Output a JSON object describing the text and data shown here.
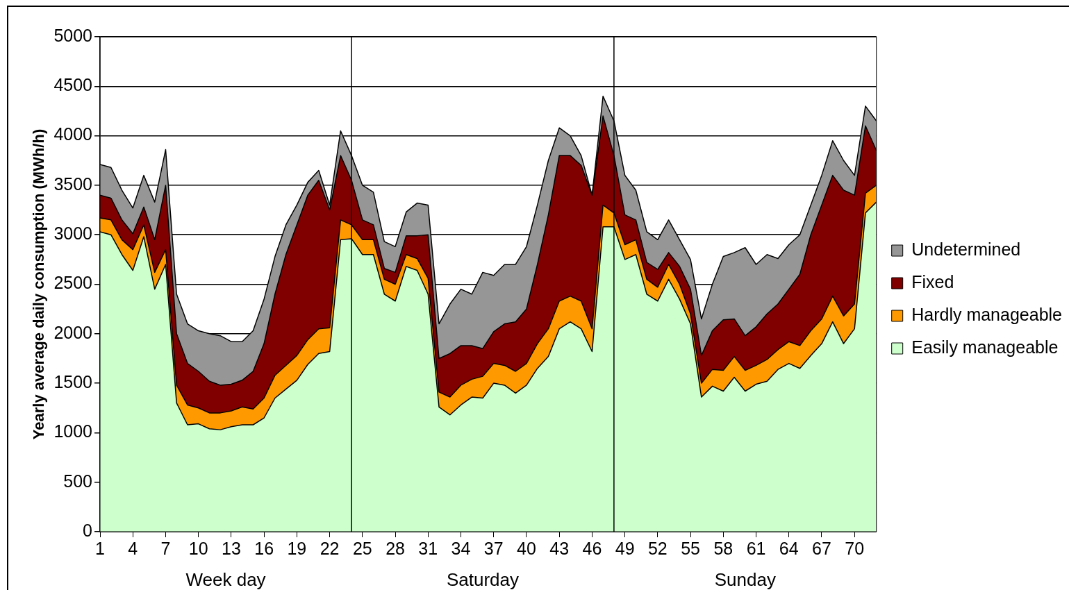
{
  "chart_data": {
    "type": "area",
    "stacked": true,
    "ylabel": "Yearly average daily consumption (MWh/h)",
    "x": [
      1,
      2,
      3,
      4,
      5,
      6,
      7,
      8,
      9,
      10,
      11,
      12,
      13,
      14,
      15,
      16,
      17,
      18,
      19,
      20,
      21,
      22,
      23,
      24,
      25,
      26,
      27,
      28,
      29,
      30,
      31,
      32,
      33,
      34,
      35,
      36,
      37,
      38,
      39,
      40,
      41,
      42,
      43,
      44,
      45,
      46,
      47,
      48,
      49,
      50,
      51,
      52,
      53,
      54,
      55,
      56,
      57,
      58,
      59,
      60,
      61,
      62,
      63,
      64,
      65,
      66,
      67,
      68,
      69,
      70,
      71,
      72
    ],
    "xlim": [
      1,
      72
    ],
    "xticks": [
      1,
      4,
      7,
      10,
      13,
      16,
      19,
      22,
      25,
      28,
      31,
      34,
      37,
      40,
      43,
      46,
      49,
      52,
      55,
      58,
      61,
      64,
      67,
      70
    ],
    "ylim": [
      0,
      5000
    ],
    "yticks": [
      0,
      500,
      1000,
      1500,
      2000,
      2500,
      3000,
      3500,
      4000,
      4500,
      5000
    ],
    "grid": "y",
    "legend": "right",
    "ref_lines": [
      {
        "axis": "x",
        "value": 24,
        "color": "#000000"
      },
      {
        "axis": "x",
        "value": 48,
        "color": "#000000"
      }
    ],
    "annotations": [
      "Week day",
      "Saturday",
      "Sunday"
    ],
    "series": [
      {
        "name": "Easily manageable",
        "color": "#ccffcc",
        "values": [
          3030,
          3000,
          2800,
          2640,
          2980,
          2450,
          2700,
          1300,
          1080,
          1090,
          1040,
          1030,
          1060,
          1080,
          1080,
          1150,
          1350,
          1440,
          1530,
          1690,
          1800,
          1820,
          2950,
          2960,
          2800,
          2800,
          2400,
          2330,
          2680,
          2640,
          2400,
          1260,
          1180,
          1280,
          1360,
          1350,
          1500,
          1480,
          1400,
          1480,
          1650,
          1770,
          2050,
          2120,
          2050,
          1820,
          3080,
          3080,
          2750,
          2800,
          2400,
          2330,
          2550,
          2350,
          2100,
          1360,
          1470,
          1420,
          1560,
          1420,
          1490,
          1520,
          1640,
          1700,
          1650,
          1780,
          1900,
          2120,
          1900,
          2050,
          3220,
          3330
        ]
      },
      {
        "name": "Hardly manageable",
        "color": "#ff9900",
        "values": [
          140,
          150,
          150,
          210,
          120,
          170,
          150,
          180,
          200,
          160,
          160,
          170,
          160,
          180,
          160,
          200,
          230,
          240,
          250,
          250,
          250,
          240,
          200,
          140,
          150,
          150,
          150,
          170,
          120,
          120,
          160,
          150,
          180,
          200,
          180,
          220,
          200,
          200,
          220,
          220,
          250,
          280,
          280,
          260,
          280,
          230,
          220,
          140,
          150,
          150,
          150,
          140,
          150,
          150,
          100,
          140,
          170,
          210,
          210,
          210,
          190,
          220,
          200,
          220,
          230,
          250,
          250,
          260,
          280,
          250,
          200,
          170
        ]
      },
      {
        "name": "Fixed",
        "color": "#800000",
        "values": [
          230,
          220,
          200,
          160,
          180,
          330,
          650,
          520,
          420,
          370,
          320,
          280,
          270,
          270,
          380,
          550,
          820,
          1120,
          1320,
          1460,
          1500,
          1190,
          650,
          450,
          200,
          150,
          110,
          120,
          190,
          230,
          440,
          340,
          440,
          400,
          340,
          280,
          320,
          420,
          500,
          550,
          800,
          1150,
          1470,
          1420,
          1370,
          1350,
          900,
          580,
          300,
          200,
          170,
          180,
          120,
          180,
          250,
          280,
          390,
          510,
          380,
          350,
          390,
          460,
          460,
          530,
          720,
          970,
          1150,
          1220,
          1270,
          1100,
          680,
          350
        ]
      },
      {
        "name": "Undetermined",
        "color": "#969696",
        "values": [
          310,
          310,
          300,
          260,
          320,
          380,
          360,
          400,
          400,
          410,
          480,
          500,
          430,
          390,
          410,
          450,
          380,
          300,
          200,
          130,
          100,
          50,
          250,
          250,
          350,
          330,
          270,
          260,
          240,
          330,
          300,
          350,
          500,
          570,
          520,
          770,
          570,
          600,
          580,
          630,
          600,
          550,
          280,
          200,
          100,
          0,
          200,
          350,
          400,
          300,
          310,
          300,
          330,
          270,
          300,
          370,
          470,
          640,
          670,
          890,
          630,
          600,
          460,
          450,
          400,
          300,
          300,
          350,
          300,
          200,
          200,
          300
        ]
      }
    ]
  }
}
